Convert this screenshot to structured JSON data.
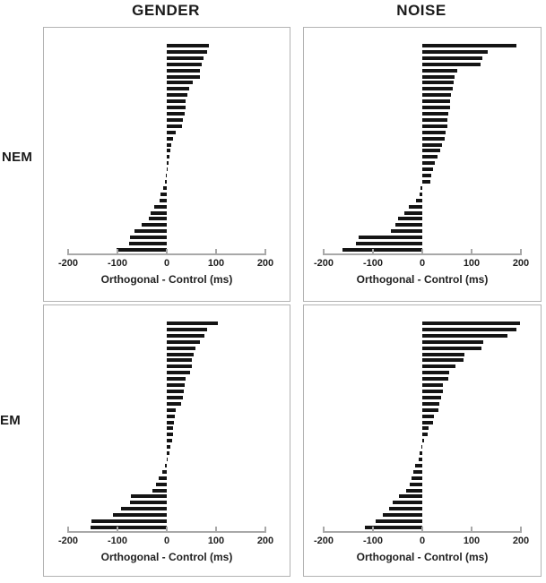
{
  "figure": {
    "col_titles": [
      "GENDER",
      "NOISE"
    ],
    "row_labels": [
      "NEM",
      "EM"
    ]
  },
  "axis": {
    "label": "Orthogonal - Control (ms)",
    "ticks": [
      "-200",
      "-100",
      "0",
      "100",
      "200"
    ],
    "tick_values": [
      -200,
      -100,
      0,
      100,
      200
    ],
    "range": [
      -200,
      200
    ]
  },
  "colors": {
    "bar": "#141414",
    "axis_line": "#a8a8a8",
    "panel_border": "#b3b3b3",
    "text": "#1a1a1a",
    "background": "#ffffff"
  },
  "chart_data": [
    {
      "type": "bar",
      "orientation": "horizontal",
      "title": "GENDER - NEM",
      "column": "GENDER",
      "row": "NEM",
      "xlabel": "Orthogonal - Control (ms)",
      "xlim": [
        -200,
        200
      ],
      "xticks": [
        -200,
        -100,
        0,
        100,
        200
      ],
      "sorted": "descending",
      "grid": false,
      "legend": false,
      "values": [
        85,
        82,
        75,
        70,
        68,
        67,
        52,
        45,
        42,
        39,
        38,
        36,
        33,
        31,
        19,
        12,
        9,
        7,
        6,
        4,
        2,
        -2,
        -4,
        -7,
        -12,
        -15,
        -25,
        -33,
        -36,
        -51,
        -65,
        -74,
        -76,
        -101
      ]
    },
    {
      "type": "bar",
      "orientation": "horizontal",
      "title": "NOISE - NEM",
      "column": "NOISE",
      "row": "NEM",
      "xlabel": "Orthogonal - Control (ms)",
      "xlim": [
        -200,
        200
      ],
      "xticks": [
        -200,
        -100,
        0,
        100,
        200
      ],
      "sorted": "descending",
      "grid": false,
      "legend": false,
      "values": [
        190,
        132,
        121,
        118,
        71,
        65,
        64,
        62,
        59,
        57,
        56,
        53,
        51,
        50,
        48,
        45,
        40,
        36,
        31,
        25,
        21,
        19,
        17,
        -4,
        -6,
        -12,
        -27,
        -37,
        -49,
        -55,
        -63,
        -130,
        -134,
        -162
      ]
    },
    {
      "type": "bar",
      "orientation": "horizontal",
      "title": "GENDER - EM",
      "column": "GENDER",
      "row": "EM",
      "xlabel": "Orthogonal - Control (ms)",
      "xlim": [
        -200,
        200
      ],
      "xticks": [
        -200,
        -100,
        0,
        100,
        200
      ],
      "sorted": "descending",
      "grid": false,
      "legend": false,
      "values": [
        103,
        82,
        76,
        68,
        59,
        54,
        51,
        50,
        47,
        38,
        36,
        34,
        32,
        29,
        18,
        16,
        15,
        13,
        12,
        10,
        7,
        5,
        2,
        -3,
        -10,
        -17,
        -22,
        -29,
        -72,
        -75,
        -92,
        -110,
        -152,
        -154
      ]
    },
    {
      "type": "bar",
      "orientation": "horizontal",
      "title": "NOISE - EM",
      "column": "NOISE",
      "row": "EM",
      "xlabel": "Orthogonal - Control (ms)",
      "xlim": [
        -200,
        200
      ],
      "xticks": [
        -200,
        -100,
        0,
        100,
        200
      ],
      "sorted": "descending",
      "grid": false,
      "legend": false,
      "values": [
        198,
        190,
        172,
        124,
        120,
        85,
        84,
        68,
        55,
        53,
        42,
        41,
        38,
        35,
        32,
        23,
        22,
        13,
        11,
        3,
        -2,
        -5,
        -8,
        -15,
        -18,
        -21,
        -25,
        -32,
        -48,
        -60,
        -68,
        -80,
        -94,
        -116
      ]
    }
  ]
}
